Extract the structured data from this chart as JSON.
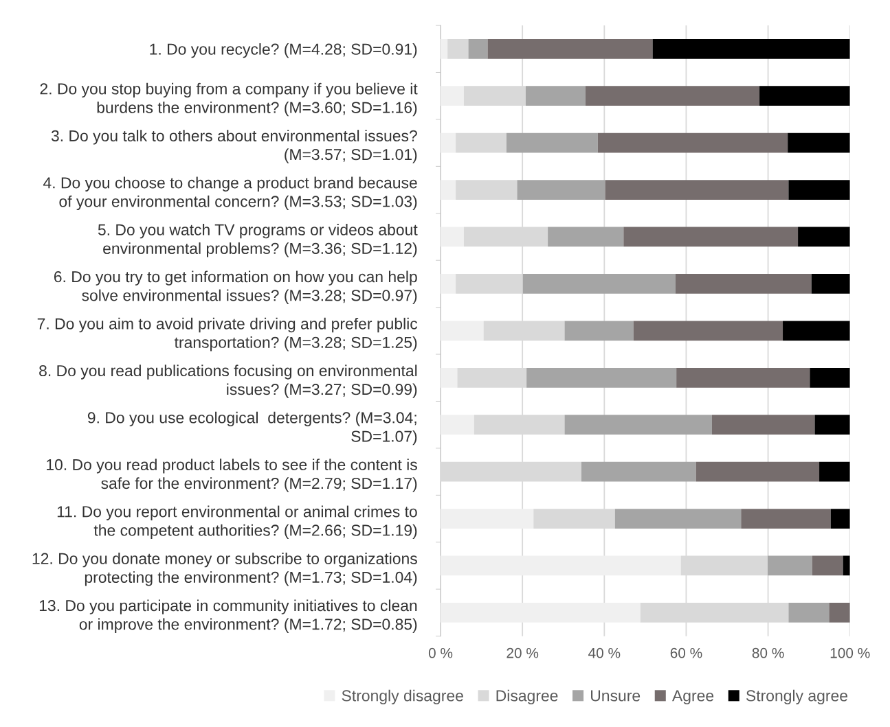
{
  "chart_data": {
    "type": "bar",
    "orientation": "horizontal",
    "stacked": true,
    "categories": [
      "1. Do you recycle? (M=4.28; SD=0.91)",
      "2. Do you stop buying from a company if you believe it\nburdens the environment? (M=3.60; SD=1.16)",
      "3. Do you talk to others about environmental issues?\n(M=3.57; SD=1.01)",
      "4. Do you choose to change a product brand because\nof your environmental concern? (M=3.53; SD=1.03)",
      "5. Do you watch TV programs or videos about\nenvironmental problems? (M=3.36; SD=1.12)",
      "6. Do you try to get information on how you can help\nsolve environmental issues? (M=3.28; SD=0.97)",
      "7. Do you aim to avoid private driving and prefer public\ntransportation? (M=3.28; SD=1.25)",
      "8. Do you read publications focusing on environmental\nissues? (M=3.27; SD=0.99)",
      "9. Do you use ecological  detergents? (M=3.04;\nSD=1.07)",
      "10. Do you read product labels to see if the content is\nsafe for the environment? (M=2.79; SD=1.17)",
      "11. Do you report environmental or animal crimes to\nthe competent authorities? (M=2.66; SD=1.19)",
      "12. Do you donate money or subscribe to organizations\nprotecting the environment? (M=1.73; SD=1.04)",
      "13. Do you participate in community initiatives to clean\nor improve the environment? (M=1.72; SD=0.85)"
    ],
    "series": [
      {
        "name": "Strongly disagree",
        "color": "#f0f0f0",
        "values": [
          1.7,
          5.7,
          3.7,
          3.7,
          5.7,
          3.7,
          10.5,
          4.1,
          8.2,
          0,
          22.7,
          58.7,
          48.8
        ]
      },
      {
        "name": "Disagree",
        "color": "#d9d9d9",
        "values": [
          5.1,
          15.1,
          12.4,
          15.0,
          20.5,
          16.4,
          19.8,
          16.9,
          22.1,
          34.4,
          19.9,
          21.2,
          36.2
        ]
      },
      {
        "name": "Unsure",
        "color": "#a5a5a5",
        "values": [
          4.7,
          14.6,
          22.3,
          21.5,
          18.5,
          37.3,
          16.8,
          36.6,
          36.0,
          28.0,
          30.8,
          10.9,
          9.9
        ]
      },
      {
        "name": "Agree",
        "color": "#766d6d",
        "values": [
          40.3,
          42.5,
          46.4,
          44.8,
          42.6,
          33.2,
          36.5,
          32.6,
          25.1,
          30.1,
          21.9,
          7.5,
          5.1
        ]
      },
      {
        "name": "Strongly agree",
        "color": "#000000",
        "values": [
          48.2,
          22.1,
          15.2,
          15.0,
          12.7,
          9.4,
          16.4,
          9.8,
          8.6,
          7.5,
          4.7,
          1.7,
          0
        ]
      }
    ],
    "xlim": [
      0,
      100
    ],
    "xticks": [
      {
        "value": 0,
        "label": "0 %"
      },
      {
        "value": 20,
        "label": "20 %"
      },
      {
        "value": 40,
        "label": "40 %"
      },
      {
        "value": 60,
        "label": "60 %"
      },
      {
        "value": 80,
        "label": "80 %"
      },
      {
        "value": 100,
        "label": "100 %"
      }
    ],
    "grid": "x",
    "legend": "bottom"
  }
}
